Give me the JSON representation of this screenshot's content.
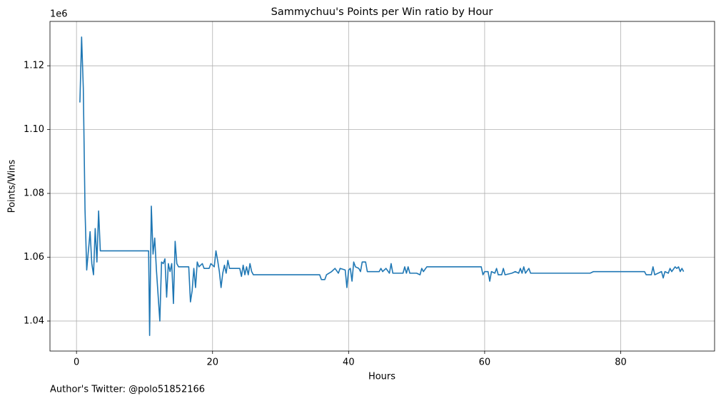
{
  "chart_data": {
    "type": "line",
    "title": "Sammychuu's Points per Win ratio by Hour",
    "xlabel": "Hours",
    "ylabel": "Points/Wins",
    "y_offset_label": "1e6",
    "footnote": "Author's Twitter: @polo51852166",
    "color": "#1f77b4",
    "grid": true,
    "xlim": [
      -3.9,
      93.8
    ],
    "ylim": [
      1.0306,
      1.1339
    ],
    "xticks": [
      0,
      20,
      40,
      60,
      80
    ],
    "yticks": [
      1.04,
      1.06,
      1.08,
      {
        "value": 1.1,
        "label": "1.10"
      },
      1.12
    ],
    "x": [
      0.5,
      0.75,
      1.0,
      1.25,
      1.5,
      1.75,
      2.0,
      2.25,
      2.5,
      2.75,
      3.0,
      3.25,
      3.5,
      10.6,
      10.75,
      11.0,
      11.25,
      11.5,
      11.75,
      12.0,
      12.25,
      12.5,
      12.75,
      13.0,
      13.25,
      13.5,
      13.75,
      14.0,
      14.25,
      14.5,
      14.75,
      15.0,
      16.5,
      16.75,
      17.0,
      17.25,
      17.5,
      17.75,
      18.0,
      18.25,
      18.5,
      18.75,
      19.5,
      19.75,
      20.0,
      20.25,
      20.5,
      20.75,
      21.0,
      21.25,
      21.5,
      21.75,
      22.0,
      22.25,
      22.5,
      24.0,
      24.25,
      24.5,
      24.75,
      25.0,
      25.25,
      25.5,
      25.75,
      26.0,
      35.75,
      36.0,
      36.5,
      36.75,
      37.5,
      38.0,
      38.5,
      38.75,
      39.5,
      39.75,
      40.0,
      40.25,
      40.5,
      40.75,
      41.0,
      41.5,
      41.75,
      42.0,
      42.5,
      42.75,
      44.5,
      44.75,
      45.0,
      45.5,
      46.0,
      46.25,
      46.5,
      48.0,
      48.25,
      48.5,
      48.75,
      49.0,
      50.0,
      50.5,
      50.75,
      51.0,
      51.5,
      59.5,
      59.75,
      60.0,
      60.5,
      60.75,
      61.0,
      61.5,
      61.75,
      62.0,
      62.5,
      62.75,
      63.0,
      64.0,
      64.5,
      65.0,
      65.25,
      65.5,
      65.75,
      66.0,
      66.5,
      66.75,
      75.0,
      75.5,
      76.0,
      83.5,
      83.75,
      84.5,
      84.75,
      85.0,
      86.0,
      86.25,
      86.5,
      87.0,
      87.25,
      87.5,
      88.0,
      88.25,
      88.5,
      88.75,
      89.0,
      89.25
    ],
    "values": [
      1.1085,
      1.129,
      1.113,
      1.075,
      1.056,
      1.062,
      1.068,
      1.058,
      1.0545,
      1.069,
      1.0585,
      1.0745,
      1.062,
      1.062,
      1.0355,
      1.076,
      1.061,
      1.066,
      1.056,
      1.048,
      1.04,
      1.0585,
      1.058,
      1.0595,
      1.0475,
      1.058,
      1.0555,
      1.058,
      1.0455,
      1.065,
      1.058,
      1.057,
      1.057,
      1.046,
      1.0495,
      1.0565,
      1.0505,
      1.0585,
      1.057,
      1.0575,
      1.058,
      1.0565,
      1.0565,
      1.058,
      1.0575,
      1.057,
      1.062,
      1.059,
      1.0555,
      1.0505,
      1.055,
      1.0575,
      1.055,
      1.059,
      1.0565,
      1.0565,
      1.054,
      1.0575,
      1.0545,
      1.057,
      1.0545,
      1.058,
      1.0555,
      1.0545,
      1.0545,
      1.053,
      1.053,
      1.0545,
      1.0555,
      1.0565,
      1.055,
      1.0565,
      1.056,
      1.0505,
      1.056,
      1.0565,
      1.0525,
      1.0585,
      1.057,
      1.0565,
      1.0555,
      1.0585,
      1.0585,
      1.0555,
      1.0555,
      1.0565,
      1.0555,
      1.0565,
      1.055,
      1.058,
      1.055,
      1.055,
      1.057,
      1.055,
      1.057,
      1.055,
      1.055,
      1.0545,
      1.0565,
      1.0555,
      1.057,
      1.057,
      1.0545,
      1.0555,
      1.0555,
      1.0525,
      1.0555,
      1.055,
      1.0565,
      1.0545,
      1.0545,
      1.0565,
      1.0545,
      1.055,
      1.0555,
      1.055,
      1.0565,
      1.055,
      1.057,
      1.055,
      1.0565,
      1.055,
      1.055,
      1.055,
      1.0555,
      1.0555,
      1.0545,
      1.0545,
      1.057,
      1.0545,
      1.0555,
      1.0535,
      1.0555,
      1.055,
      1.0565,
      1.0555,
      1.057,
      1.0565,
      1.057,
      1.0555,
      1.0565,
      1.0555
    ]
  }
}
